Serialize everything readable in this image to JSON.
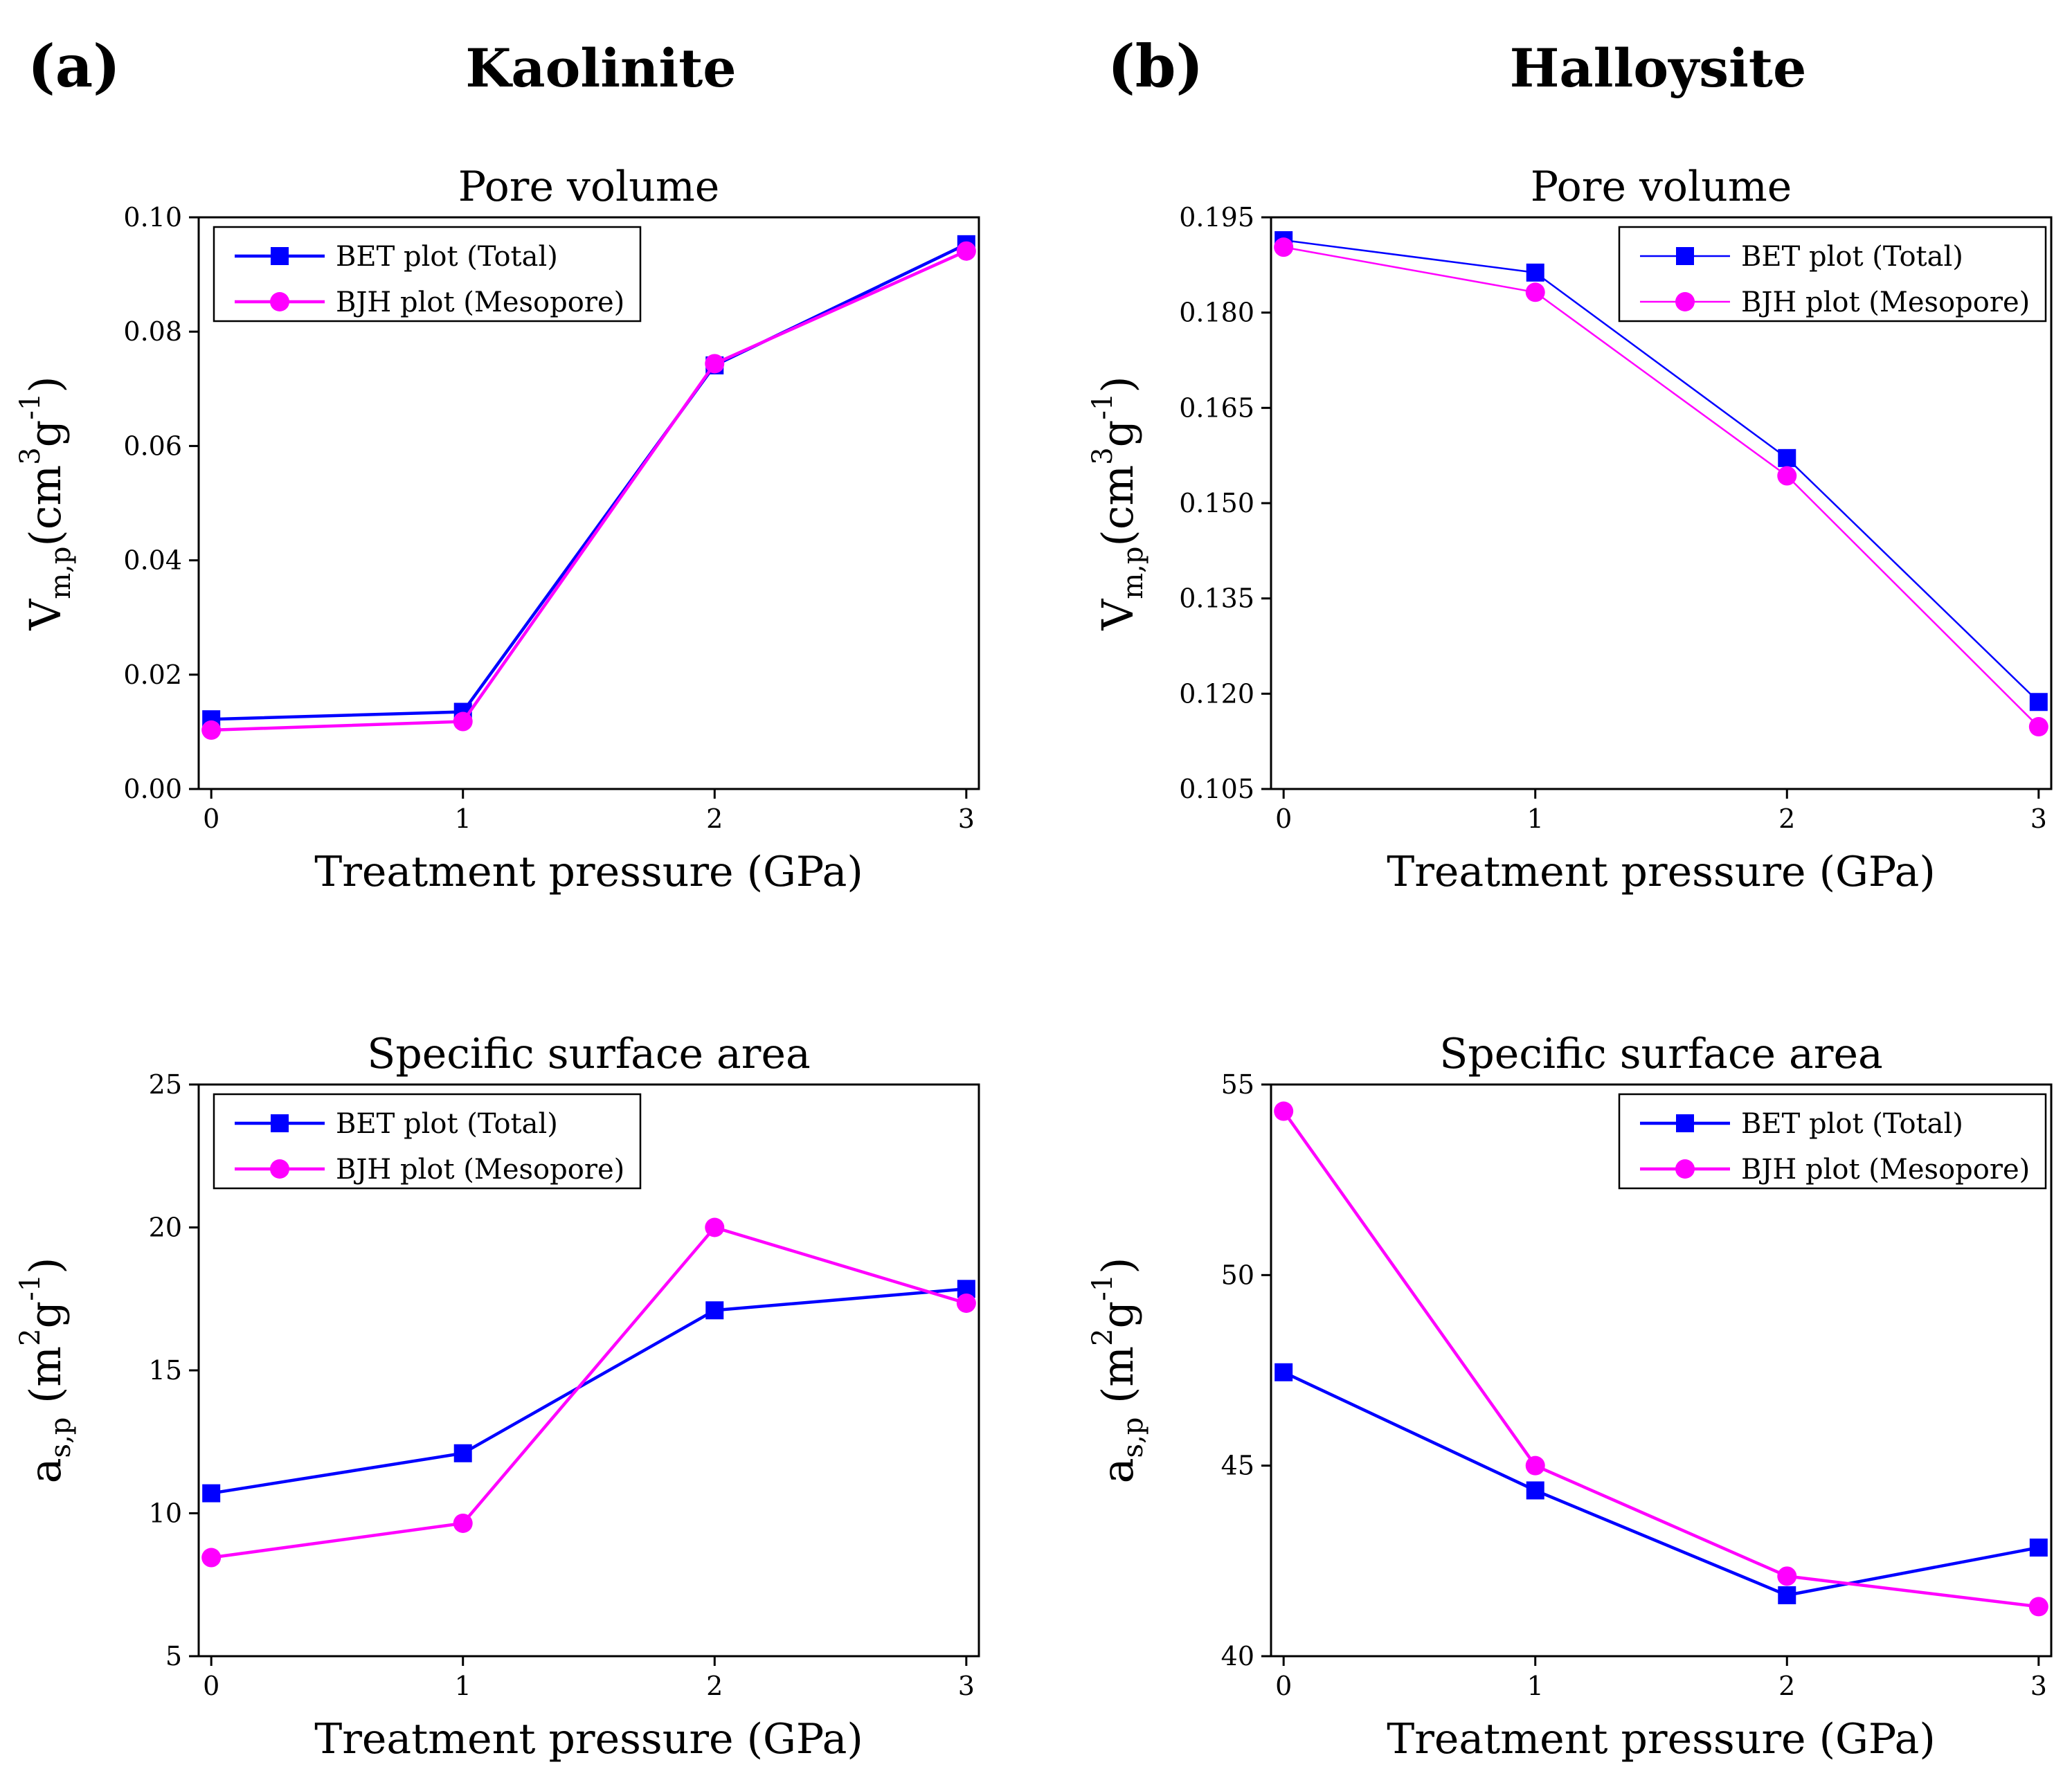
{
  "panels": [
    {
      "letter": "(a)",
      "mineral": "Kaolinite"
    },
    {
      "letter": "(b)",
      "mineral": "Halloysite"
    }
  ],
  "colors": {
    "bet": "#0000ff",
    "bjh": "#ff00ff",
    "axis": "#000000"
  },
  "chart_data": [
    {
      "id": "kaolinite-pore-volume",
      "type": "line",
      "title": "Pore volume",
      "xlabel": "Treatment pressure (GPa)",
      "ylabel": {
        "main": "V",
        "sub": "m,p",
        "unit_open": "(cm",
        "sup1": "3",
        "mid": "g",
        "sup2": "-1",
        "unit_close": ")"
      },
      "x": [
        0,
        1,
        2,
        3
      ],
      "xticks": [
        "0",
        "1",
        "2",
        "3"
      ],
      "xlim": [
        -0.05,
        3.05
      ],
      "ylim": [
        0.0,
        0.1
      ],
      "yticks": [
        "0.00",
        "0.02",
        "0.04",
        "0.06",
        "0.08",
        "0.10"
      ],
      "ytick_values": [
        0.0,
        0.02,
        0.04,
        0.06,
        0.08,
        0.1
      ],
      "legend_position": "top-left",
      "line_weight": "thick",
      "series": [
        {
          "name": "BET plot (Total)",
          "marker": "square",
          "values": [
            0.0122,
            0.0135,
            0.0741,
            0.0953
          ]
        },
        {
          "name": "BJH plot (Mesopore)",
          "marker": "circle",
          "values": [
            0.0103,
            0.0118,
            0.0744,
            0.0941
          ]
        }
      ]
    },
    {
      "id": "halloysite-pore-volume",
      "type": "line",
      "title": "Pore volume",
      "xlabel": "Treatment pressure (GPa)",
      "ylabel": {
        "main": "V",
        "sub": "m,p",
        "unit_open": "(cm",
        "sup1": "3",
        "mid": "g",
        "sup2": "-1",
        "unit_close": ")"
      },
      "x": [
        0,
        1,
        2,
        3
      ],
      "xticks": [
        "0",
        "1",
        "2",
        "3"
      ],
      "xlim": [
        -0.05,
        3.05
      ],
      "ylim": [
        0.105,
        0.195
      ],
      "yticks": [
        "0.105",
        "0.120",
        "0.135",
        "0.150",
        "0.165",
        "0.180",
        "0.195"
      ],
      "ytick_values": [
        0.105,
        0.12,
        0.135,
        0.15,
        0.165,
        0.18,
        0.195
      ],
      "legend_position": "top-right",
      "line_weight": "thin",
      "series": [
        {
          "name": "BET plot (Total)",
          "marker": "square",
          "values": [
            0.1914,
            0.1863,
            0.1571,
            0.1187
          ]
        },
        {
          "name": "BJH plot (Mesopore)",
          "marker": "circle",
          "values": [
            0.1903,
            0.1832,
            0.1543,
            0.1148
          ]
        }
      ]
    },
    {
      "id": "kaolinite-surface-area",
      "type": "line",
      "title": "Specific surface area",
      "xlabel": "Treatment pressure (GPa)",
      "ylabel": {
        "main": "a",
        "sub": "s,p",
        "unit_open": " (m",
        "sup1": "2",
        "mid": "g",
        "sup2": "-1",
        "unit_close": ")"
      },
      "x": [
        0,
        1,
        2,
        3
      ],
      "xticks": [
        "0",
        "1",
        "2",
        "3"
      ],
      "xlim": [
        -0.05,
        3.05
      ],
      "ylim": [
        5,
        25
      ],
      "yticks": [
        "5",
        "10",
        "15",
        "20",
        "25"
      ],
      "ytick_values": [
        5,
        10,
        15,
        20,
        25
      ],
      "legend_position": "top-left",
      "line_weight": "thick",
      "series": [
        {
          "name": "BET plot (Total)",
          "marker": "square",
          "values": [
            10.7,
            12.1,
            17.1,
            17.85
          ]
        },
        {
          "name": "BJH plot (Mesopore)",
          "marker": "circle",
          "values": [
            8.45,
            9.65,
            20.0,
            17.35
          ]
        }
      ]
    },
    {
      "id": "halloysite-surface-area",
      "type": "line",
      "title": "Specific surface area",
      "xlabel": "Treatment pressure (GPa)",
      "ylabel": {
        "main": "a",
        "sub": "s,p",
        "unit_open": " (m",
        "sup1": "2",
        "mid": "g",
        "sup2": "-1",
        "unit_close": ")"
      },
      "x": [
        0,
        1,
        2,
        3
      ],
      "xticks": [
        "0",
        "1",
        "2",
        "3"
      ],
      "xlim": [
        -0.05,
        3.05
      ],
      "ylim": [
        40,
        55
      ],
      "yticks": [
        "40",
        "45",
        "50",
        "55"
      ],
      "ytick_values": [
        40,
        45,
        50,
        55
      ],
      "legend_position": "top-right",
      "line_weight": "thick",
      "series": [
        {
          "name": "BET plot (Total)",
          "marker": "square",
          "values": [
            47.45,
            44.35,
            41.6,
            42.85
          ]
        },
        {
          "name": "BJH plot (Mesopore)",
          "marker": "circle",
          "values": [
            54.3,
            45.0,
            42.1,
            41.3
          ]
        }
      ]
    }
  ]
}
